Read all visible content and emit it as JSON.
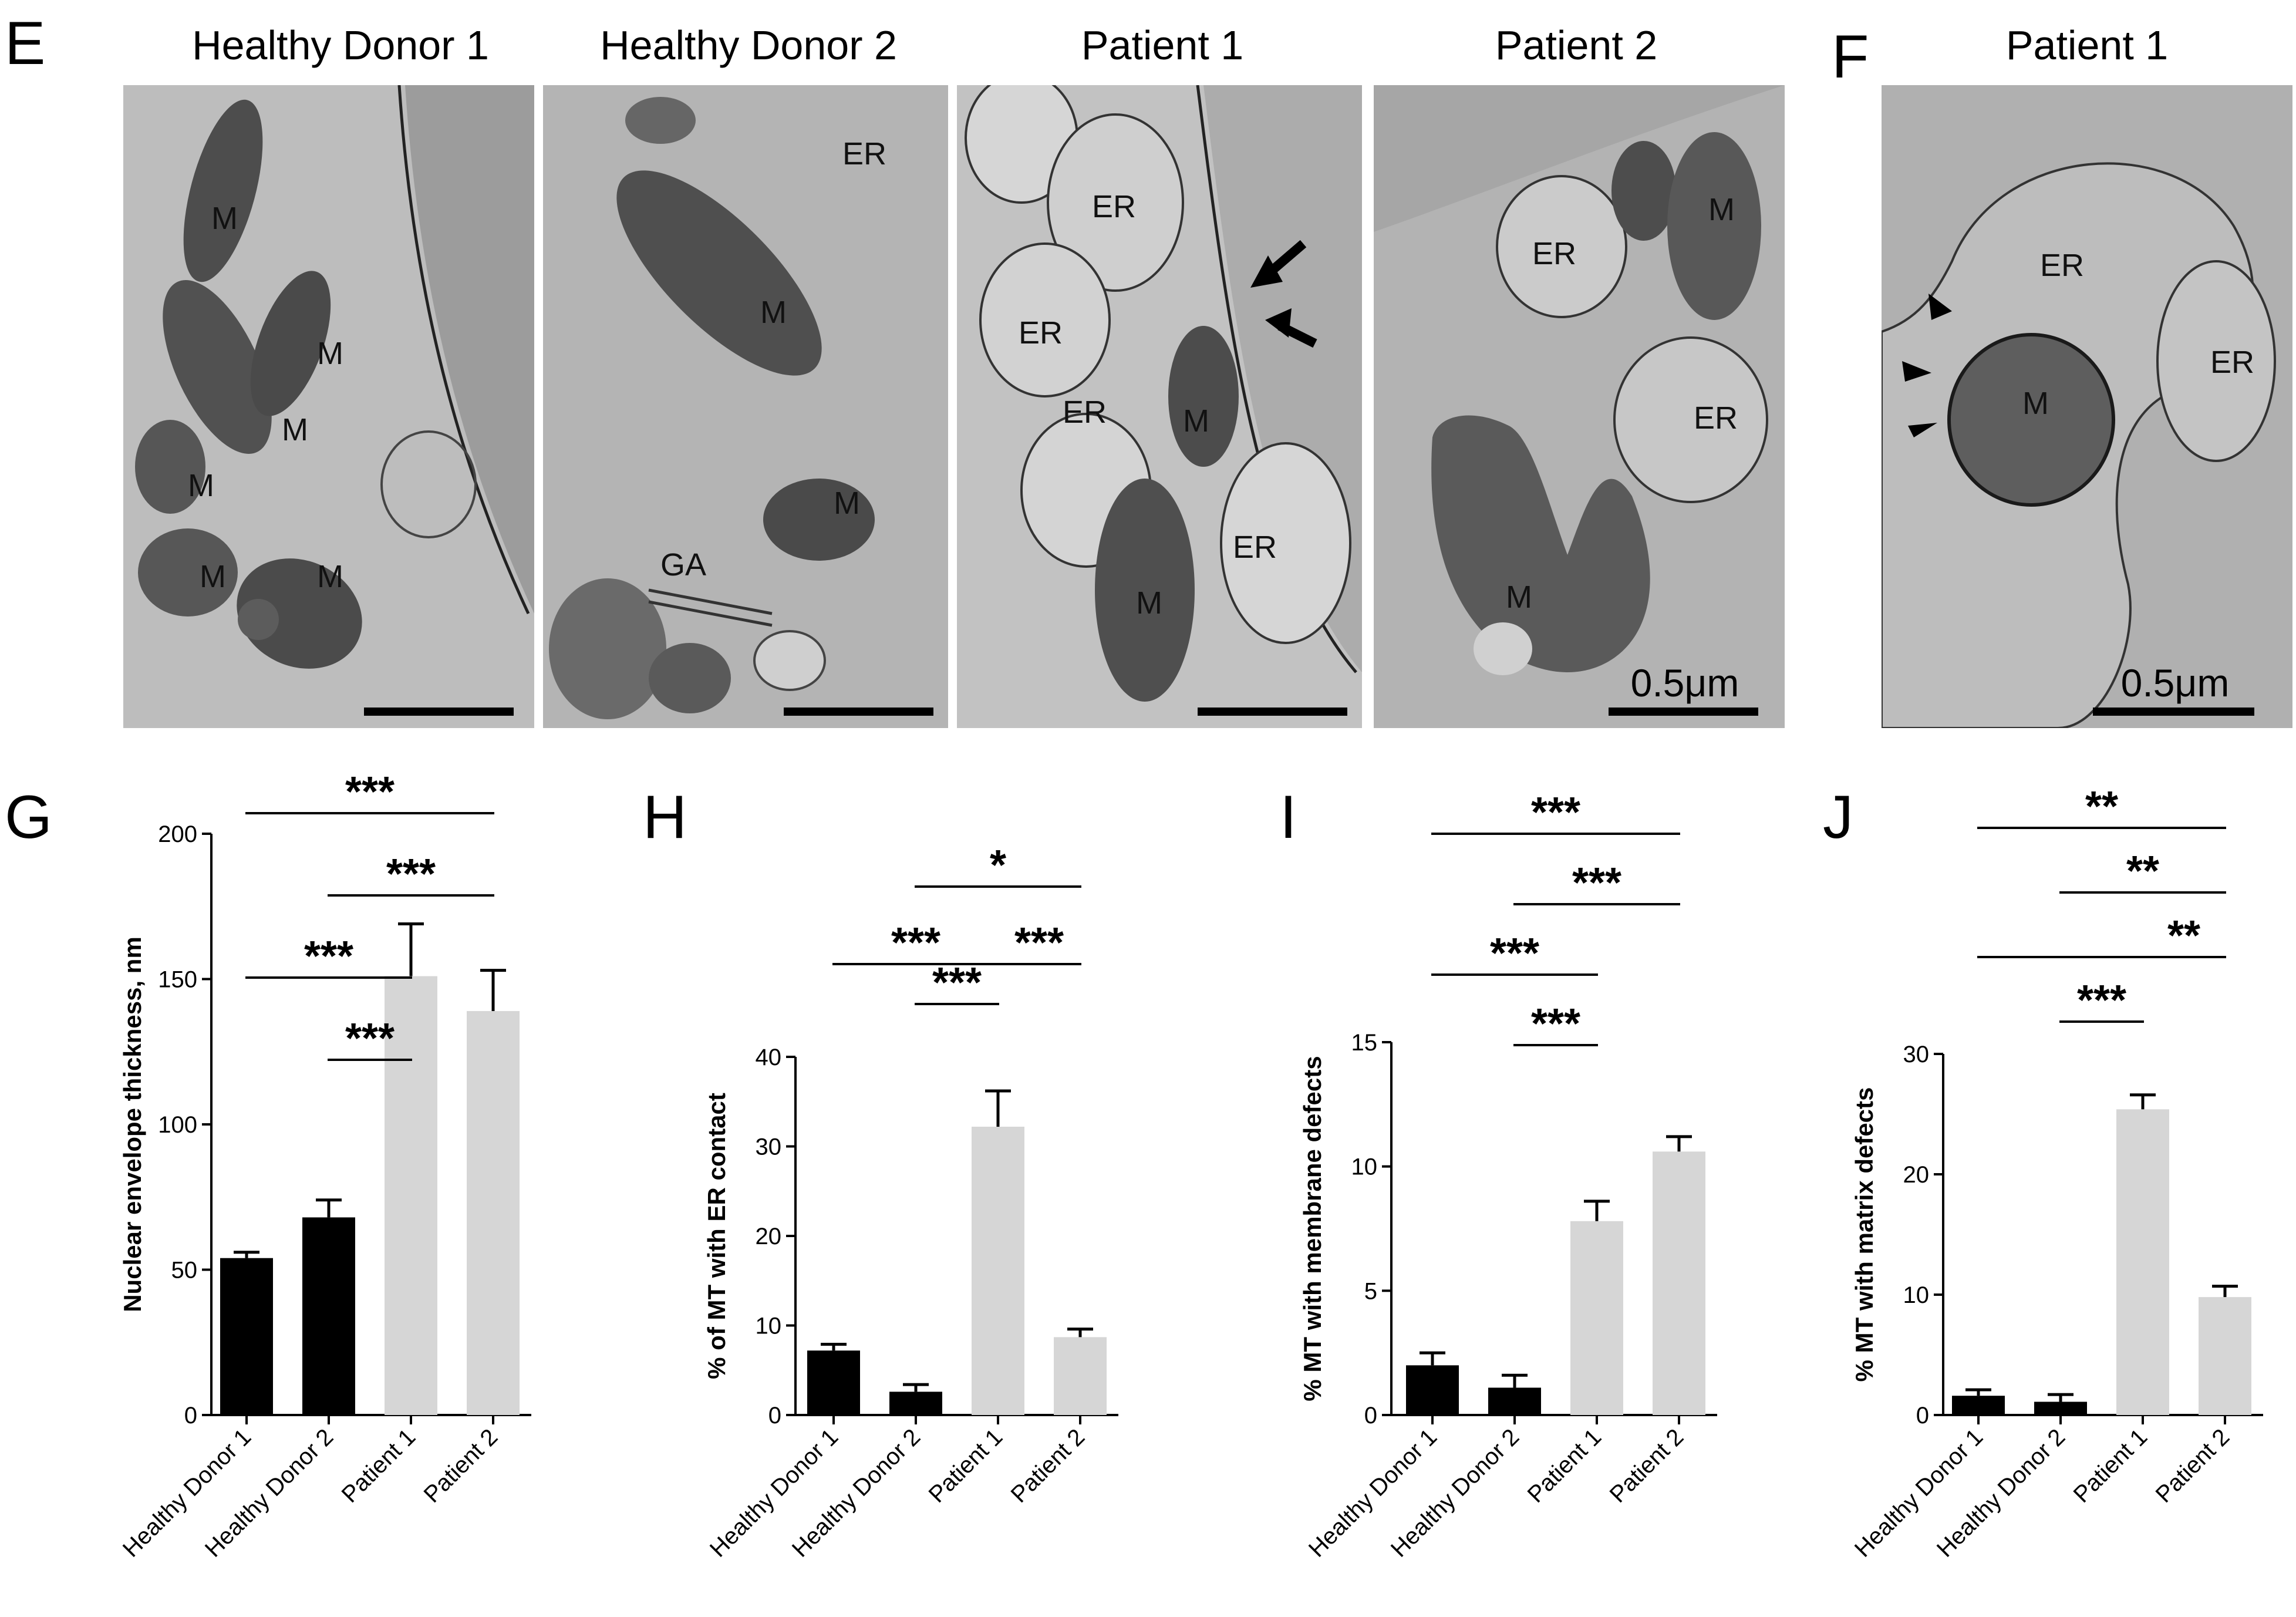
{
  "panels": {
    "E": {
      "letter": "E",
      "images": [
        {
          "title": "Healthy Donor 1",
          "labels": [
            "M",
            "M",
            "M",
            "M",
            "M",
            "M"
          ],
          "scale": ""
        },
        {
          "title": "Healthy Donor 2",
          "labels": [
            "ER",
            "M",
            "M",
            "GA"
          ],
          "scale": ""
        },
        {
          "title": "Patient 1",
          "labels": [
            "ER",
            "ER",
            "ER",
            "ER",
            "M",
            "M"
          ],
          "scale": ""
        },
        {
          "title": "Patient 2",
          "labels": [
            "ER",
            "M",
            "ER",
            "M"
          ],
          "scale": "0.5μm"
        }
      ]
    },
    "F": {
      "letter": "F",
      "title": "Patient 1",
      "labels": [
        "ER",
        "M",
        "ER"
      ],
      "scale": "0.5μm"
    }
  },
  "chart_data": [
    {
      "panel": "G",
      "type": "bar",
      "ylabel": "Nuclear envelope thickness, nm",
      "categories": [
        "Healthy Donor 1",
        "Healthy Donor 2",
        "Patient 1",
        "Patient 2"
      ],
      "values": [
        54,
        68,
        151,
        139
      ],
      "errors": [
        2,
        6,
        18,
        14
      ],
      "bar_colors": [
        "#000000",
        "#000000",
        "#d6d6d6",
        "#d6d6d6"
      ],
      "ylim": [
        0,
        200
      ],
      "yticks": [
        "0",
        "50",
        "100",
        "150",
        "200"
      ],
      "significance": [
        {
          "from": 0,
          "to": 3,
          "label": "***"
        },
        {
          "from": 1,
          "to": 3,
          "label": "***"
        },
        {
          "from": 0,
          "to": 2,
          "label": "***"
        },
        {
          "from": 1,
          "to": 2,
          "label": "***"
        }
      ]
    },
    {
      "panel": "H",
      "type": "bar",
      "ylabel": "% of MT with ER contact",
      "categories": [
        "Healthy Donor 1",
        "Healthy Donor 2",
        "Patient 1",
        "Patient 2"
      ],
      "values": [
        7.2,
        2.6,
        32.2,
        8.7
      ],
      "errors": [
        0.7,
        0.8,
        4.0,
        0.9
      ],
      "bar_colors": [
        "#000000",
        "#000000",
        "#d6d6d6",
        "#d6d6d6"
      ],
      "ylim": [
        0,
        40
      ],
      "yticks": [
        "0",
        "10",
        "20",
        "30",
        "40"
      ],
      "significance": [
        {
          "from": 1,
          "to": 3,
          "label": "*"
        },
        {
          "from": 0,
          "to": 2,
          "label": "***"
        },
        {
          "from": 2,
          "to": 3,
          "label": "***"
        },
        {
          "from": 1,
          "to": 2,
          "label": "***"
        }
      ]
    },
    {
      "panel": "I",
      "type": "bar",
      "ylabel": "% MT with membrane defects",
      "categories": [
        "Healthy Donor 1",
        "Healthy Donor 2",
        "Patient 1",
        "Patient 2"
      ],
      "values": [
        2.0,
        1.1,
        7.8,
        10.6
      ],
      "errors": [
        0.5,
        0.5,
        0.8,
        0.6
      ],
      "bar_colors": [
        "#000000",
        "#000000",
        "#d6d6d6",
        "#d6d6d6"
      ],
      "ylim": [
        0,
        15
      ],
      "yticks": [
        "0",
        "5",
        "10",
        "15"
      ],
      "significance": [
        {
          "from": 0,
          "to": 3,
          "label": "***"
        },
        {
          "from": 1,
          "to": 3,
          "label": "***"
        },
        {
          "from": 0,
          "to": 2,
          "label": "***"
        },
        {
          "from": 1,
          "to": 2,
          "label": "***"
        }
      ]
    },
    {
      "panel": "J",
      "type": "bar",
      "ylabel": "% MT with matrix defects",
      "categories": [
        "Healthy Donor 1",
        "Healthy Donor 2",
        "Patient 1",
        "Patient 2"
      ],
      "values": [
        1.6,
        1.1,
        25.4,
        9.8
      ],
      "errors": [
        0.5,
        0.6,
        1.2,
        0.9
      ],
      "bar_colors": [
        "#000000",
        "#000000",
        "#d6d6d6",
        "#d6d6d6"
      ],
      "ylim": [
        0,
        30
      ],
      "yticks": [
        "0",
        "10",
        "20",
        "30"
      ],
      "significance": [
        {
          "from": 0,
          "to": 3,
          "label": "**"
        },
        {
          "from": 1,
          "to": 3,
          "label": "**"
        },
        {
          "from": 0,
          "to": 2,
          "label": ""
        },
        {
          "from": 2,
          "to": 3,
          "label": "**"
        },
        {
          "from": 1,
          "to": 2,
          "label": "***"
        }
      ]
    }
  ]
}
